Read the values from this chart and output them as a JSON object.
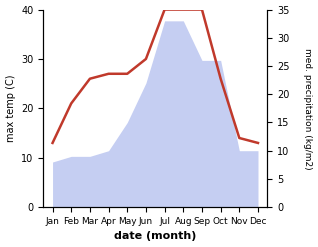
{
  "months": [
    "Jan",
    "Feb",
    "Mar",
    "Apr",
    "May",
    "Jun",
    "Jul",
    "Aug",
    "Sep",
    "Oct",
    "Nov",
    "Dec"
  ],
  "month_indices": [
    1,
    2,
    3,
    4,
    5,
    6,
    7,
    8,
    9,
    10,
    11,
    12
  ],
  "max_temp": [
    13,
    21,
    26,
    27,
    27,
    30,
    40,
    40,
    40,
    26,
    14,
    13
  ],
  "precipitation": [
    8,
    9,
    9,
    10,
    15,
    22,
    33,
    33,
    26,
    26,
    10,
    10
  ],
  "temp_color": "#c0392b",
  "precip_fill_color": "#c5cef2",
  "left_ylim": [
    0,
    40
  ],
  "right_ylim": [
    0,
    35
  ],
  "left_yticks": [
    0,
    10,
    20,
    30,
    40
  ],
  "right_yticks": [
    0,
    5,
    10,
    15,
    20,
    25,
    30,
    35
  ],
  "xlabel": "date (month)",
  "ylabel_left": "max temp (C)",
  "ylabel_right": "med. precipitation (kg/m2)",
  "figsize": [
    3.18,
    2.47
  ],
  "dpi": 100
}
